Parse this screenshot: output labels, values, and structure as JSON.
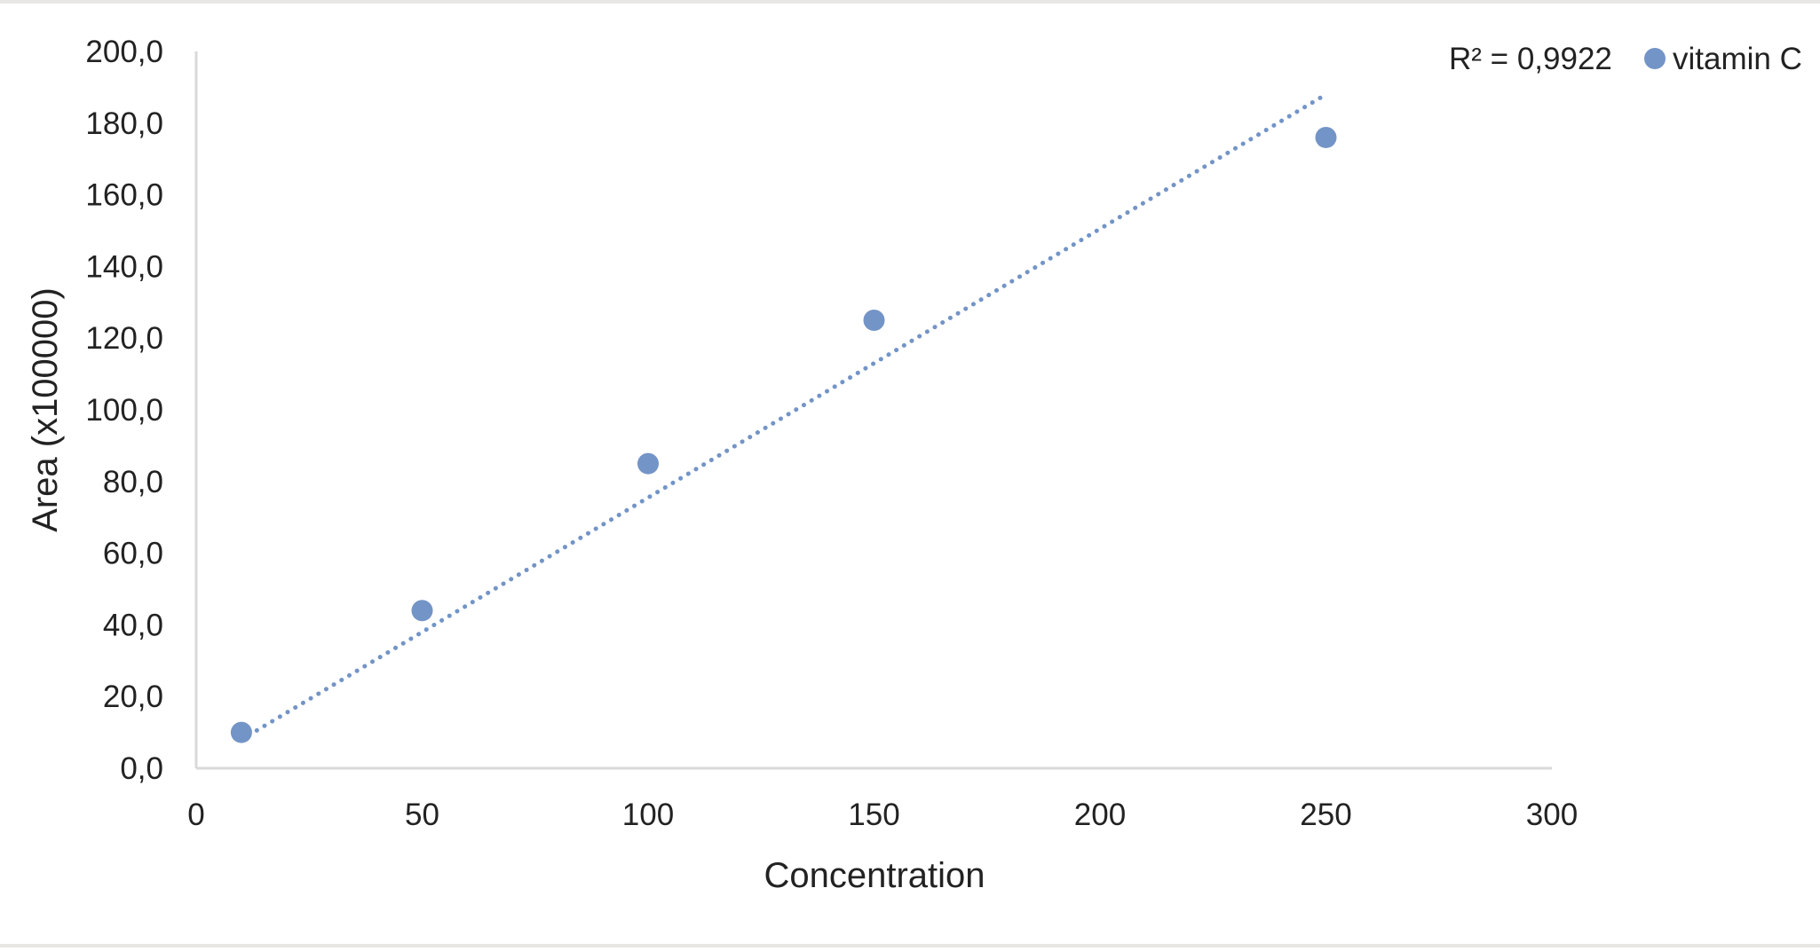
{
  "chart_data": {
    "type": "scatter",
    "xlabel": "Concentration",
    "ylabel": "Area (x100000)",
    "xlim": [
      0,
      300
    ],
    "ylim": [
      0,
      200
    ],
    "x_ticks": [
      "0",
      "50",
      "100",
      "150",
      "200",
      "250",
      "300"
    ],
    "y_ticks": [
      "0,0",
      "20,0",
      "40,0",
      "60,0",
      "80,0",
      "100,0",
      "120,0",
      "140,0",
      "160,0",
      "180,0",
      "200,0"
    ],
    "series": [
      {
        "name": "vitamin C",
        "color": "#7394c6",
        "points": [
          {
            "x": 10,
            "y": 10.0
          },
          {
            "x": 50,
            "y": 44.0
          },
          {
            "x": 100,
            "y": 85.0
          },
          {
            "x": 150,
            "y": 125.0
          },
          {
            "x": 250,
            "y": 176.0
          }
        ]
      }
    ],
    "trendline": {
      "type": "linear",
      "style": "dotted",
      "x_range": [
        10,
        250
      ],
      "y_range": [
        8.0,
        188.0
      ],
      "r_squared_label": "R² = 0,9922"
    },
    "grid": false,
    "legend": "top-right"
  }
}
